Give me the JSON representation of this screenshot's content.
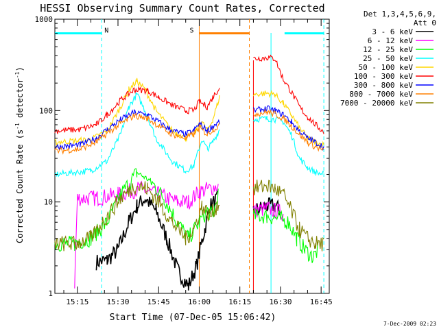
{
  "chart_data": {
    "type": "line",
    "title": "HESSI Observing Summary Count Rates, Corrected",
    "xlabel": "Start Time (07-Dec-05 15:06:42)",
    "ylabel": "Corrected Count Rate (s",
    "ylabel_sup1": "-1",
    "ylabel_mid": " detector",
    "ylabel_sup2": "-1",
    "ylabel_end": ")",
    "yscale": "log",
    "ylim": [
      1,
      1000
    ],
    "xlim": [
      "15:06:42",
      "16:48:00"
    ],
    "x_ticks": [
      "15:15",
      "15:30",
      "15:45",
      "16:00",
      "16:15",
      "16:30",
      "16:45"
    ],
    "y_ticks": [
      "1",
      "10",
      "100",
      "1000"
    ],
    "timestamp": "7-Dec-2009 02:23",
    "legend": {
      "header1": "Det 1,3,4,5,6,9,",
      "header2": "Att 0",
      "placement": "outside-right"
    },
    "flags": [
      {
        "label": "N",
        "color": "#00ffff",
        "segments": [
          [
            "15:06:42",
            "15:24:00"
          ],
          [
            "16:31:30",
            "16:46:00"
          ]
        ],
        "bounds": [
          "15:24:00",
          "16:46:00"
        ],
        "level": 700
      },
      {
        "label": "S",
        "color": "#ff8000",
        "segments": [
          [
            "16:00:00",
            "16:18:30"
          ]
        ],
        "bounds": [
          "16:00:00",
          "16:18:30"
        ],
        "level": 700
      }
    ],
    "gaps": [
      [
        "16:07:30",
        "16:20:00"
      ]
    ],
    "series": [
      {
        "name": "3 - 6 keV",
        "color": "#000000",
        "points": [
          [
            "15:06:42",
            null
          ],
          [
            "15:22:00",
            2.2
          ],
          [
            "15:26:00",
            2.3
          ],
          [
            "15:30:00",
            3
          ],
          [
            "15:34:00",
            6
          ],
          [
            "15:37:00",
            9
          ],
          [
            "15:40:00",
            11
          ],
          [
            "15:44:00",
            8
          ],
          [
            "15:48:00",
            4
          ],
          [
            "15:52:00",
            1.8
          ],
          [
            "15:56:00",
            1.2
          ],
          [
            "15:59:00",
            2
          ],
          [
            "16:02:00",
            5
          ],
          [
            "16:04:00",
            9
          ],
          [
            "16:07:00",
            11
          ],
          [
            "16:20:00",
            8
          ],
          [
            "16:25:00",
            9
          ],
          [
            "16:28:00",
            9
          ],
          [
            "16:30:00",
            8
          ]
        ]
      },
      {
        "name": "6 - 12 keV",
        "color": "#ff00ff",
        "points": [
          [
            "15:14:00",
            1.3
          ],
          [
            "15:15:00",
            11
          ],
          [
            "15:22:00",
            11
          ],
          [
            "15:30:00",
            12
          ],
          [
            "15:38:00",
            14
          ],
          [
            "15:45:00",
            12
          ],
          [
            "15:52:00",
            10
          ],
          [
            "15:56:00",
            10
          ],
          [
            "16:00:00",
            13
          ],
          [
            "16:04:00",
            14
          ],
          [
            "16:07:00",
            15
          ],
          [
            "16:20:00",
            8
          ],
          [
            "16:25:00",
            8.5
          ],
          [
            "16:28:00",
            8
          ],
          [
            "16:31:00",
            7.5
          ]
        ]
      },
      {
        "name": "12 - 25 keV",
        "color": "#00ff00",
        "points": [
          [
            "15:06:42",
            3.5
          ],
          [
            "15:14:00",
            3.5
          ],
          [
            "15:20:00",
            4
          ],
          [
            "15:26:00",
            6
          ],
          [
            "15:31:00",
            12
          ],
          [
            "15:37:00",
            21
          ],
          [
            "15:42:00",
            17
          ],
          [
            "15:47:00",
            11
          ],
          [
            "15:52:00",
            6
          ],
          [
            "15:56:00",
            4
          ],
          [
            "16:00:00",
            6
          ],
          [
            "16:03:00",
            8
          ],
          [
            "16:05:00",
            7
          ],
          [
            "16:07:00",
            12
          ],
          [
            "16:20:00",
            7
          ],
          [
            "16:25:00",
            7
          ],
          [
            "16:30:00",
            6.5
          ],
          [
            "16:33:00",
            6
          ],
          [
            "16:36:00",
            4
          ],
          [
            "16:39:00",
            3
          ],
          [
            "16:42:00",
            2.5
          ],
          [
            "16:44:00",
            3
          ]
        ]
      },
      {
        "name": "25 - 50 keV",
        "color": "#00ffff",
        "points": [
          [
            "15:06:42",
            20
          ],
          [
            "15:20:00",
            22
          ],
          [
            "15:26:00",
            28
          ],
          [
            "15:31:00",
            55
          ],
          [
            "15:34:00",
            110
          ],
          [
            "15:37:00",
            150
          ],
          [
            "15:40:00",
            100
          ],
          [
            "15:44:00",
            50
          ],
          [
            "15:50:00",
            28
          ],
          [
            "15:55:00",
            22
          ],
          [
            "15:58:00",
            25
          ],
          [
            "16:01:00",
            48
          ],
          [
            "16:03:00",
            38
          ],
          [
            "16:05:00",
            45
          ],
          [
            "16:07:30",
            62
          ],
          [
            "16:20:00",
            80
          ],
          [
            "16:25:00",
            82
          ],
          [
            "16:28:00",
            80
          ],
          [
            "16:31:00",
            75
          ],
          [
            "16:34:00",
            55
          ],
          [
            "16:37:00",
            30
          ],
          [
            "16:40:00",
            24
          ],
          [
            "16:43:00",
            21
          ],
          [
            "16:46:00",
            20
          ]
        ]
      },
      {
        "name": "50 - 100 keV",
        "color": "#ffd700",
        "points": [
          [
            "15:06:42",
            45
          ],
          [
            "15:20:00",
            48
          ],
          [
            "15:26:00",
            60
          ],
          [
            "15:31:00",
            110
          ],
          [
            "15:34:00",
            170
          ],
          [
            "15:37:00",
            210
          ],
          [
            "15:40:00",
            170
          ],
          [
            "15:44:00",
            100
          ],
          [
            "15:50:00",
            60
          ],
          [
            "15:55:00",
            50
          ],
          [
            "15:58:00",
            55
          ],
          [
            "16:01:00",
            75
          ],
          [
            "16:03:00",
            60
          ],
          [
            "16:05:00",
            80
          ],
          [
            "16:07:30",
            140
          ],
          [
            "16:20:00",
            150
          ],
          [
            "16:25:00",
            155
          ],
          [
            "16:28:00",
            150
          ],
          [
            "16:31:00",
            120
          ],
          [
            "16:34:00",
            90
          ],
          [
            "16:37:00",
            65
          ],
          [
            "16:40:00",
            50
          ],
          [
            "16:43:00",
            45
          ],
          [
            "16:46:00",
            42
          ]
        ]
      },
      {
        "name": "100 - 300 keV",
        "color": "#ff0000",
        "points": [
          [
            "15:06:42",
            60
          ],
          [
            "15:16:00",
            62
          ],
          [
            "15:22:00",
            70
          ],
          [
            "15:26:00",
            90
          ],
          [
            "15:31:00",
            130
          ],
          [
            "15:36:00",
            170
          ],
          [
            "15:41:00",
            165
          ],
          [
            "15:45:00",
            140
          ],
          [
            "15:50:00",
            115
          ],
          [
            "15:55:00",
            100
          ],
          [
            "15:58:00",
            100
          ],
          [
            "16:00:00",
            125
          ],
          [
            "16:03:00",
            110
          ],
          [
            "16:05:00",
            140
          ],
          [
            "16:07:30",
            180
          ],
          [
            "16:20:00",
            370
          ],
          [
            "16:25:00",
            380
          ],
          [
            "16:28:00",
            370
          ],
          [
            "16:31:00",
            220
          ],
          [
            "16:34:00",
            160
          ],
          [
            "16:37:00",
            110
          ],
          [
            "16:40:00",
            85
          ],
          [
            "16:43:00",
            70
          ],
          [
            "16:46:00",
            58
          ]
        ]
      },
      {
        "name": "300 - 800 keV",
        "color": "#0000ff",
        "points": [
          [
            "15:06:42",
            40
          ],
          [
            "15:16:00",
            42
          ],
          [
            "15:22:00",
            50
          ],
          [
            "15:26:00",
            62
          ],
          [
            "15:31:00",
            80
          ],
          [
            "15:36:00",
            95
          ],
          [
            "15:41:00",
            90
          ],
          [
            "15:45:00",
            75
          ],
          [
            "15:50:00",
            60
          ],
          [
            "15:55:00",
            55
          ],
          [
            "15:58:00",
            60
          ],
          [
            "16:00:00",
            72
          ],
          [
            "16:03:00",
            60
          ],
          [
            "16:05:00",
            68
          ],
          [
            "16:07:30",
            75
          ],
          [
            "16:20:00",
            100
          ],
          [
            "16:25:00",
            105
          ],
          [
            "16:28:00",
            100
          ],
          [
            "16:31:00",
            90
          ],
          [
            "16:34:00",
            75
          ],
          [
            "16:37:00",
            60
          ],
          [
            "16:40:00",
            50
          ],
          [
            "16:43:00",
            45
          ],
          [
            "16:46:00",
            40
          ]
        ]
      },
      {
        "name": "800 - 7000 keV",
        "color": "#ff8000",
        "points": [
          [
            "15:06:42",
            36
          ],
          [
            "15:16:00",
            38
          ],
          [
            "15:22:00",
            45
          ],
          [
            "15:26:00",
            56
          ],
          [
            "15:31:00",
            72
          ],
          [
            "15:36:00",
            88
          ],
          [
            "15:41:00",
            82
          ],
          [
            "15:45:00",
            68
          ],
          [
            "15:50:00",
            55
          ],
          [
            "15:55:00",
            50
          ],
          [
            "15:58:00",
            55
          ],
          [
            "16:00:00",
            65
          ],
          [
            "16:03:00",
            55
          ],
          [
            "16:05:00",
            62
          ],
          [
            "16:07:30",
            68
          ],
          [
            "16:20:00",
            92
          ],
          [
            "16:25:00",
            96
          ],
          [
            "16:28:00",
            92
          ],
          [
            "16:31:00",
            82
          ],
          [
            "16:34:00",
            68
          ],
          [
            "16:37:00",
            55
          ],
          [
            "16:40:00",
            45
          ],
          [
            "16:43:00",
            40
          ],
          [
            "16:46:00",
            36
          ]
        ]
      },
      {
        "name": "7000 - 20000 keV",
        "color": "#808000",
        "points": [
          [
            "15:06:42",
            3.5
          ],
          [
            "15:14:00",
            3.5
          ],
          [
            "15:20:00",
            4
          ],
          [
            "15:26:00",
            7
          ],
          [
            "15:31:00",
            11
          ],
          [
            "15:36:00",
            15
          ],
          [
            "15:41:00",
            14
          ],
          [
            "15:45:00",
            10
          ],
          [
            "15:50:00",
            6
          ],
          [
            "15:55:00",
            4
          ],
          [
            "15:58:00",
            5
          ],
          [
            "16:01:00",
            9
          ],
          [
            "16:04:00",
            7
          ],
          [
            "16:07:30",
            10
          ],
          [
            "16:20:00",
            14
          ],
          [
            "16:25:00",
            15
          ],
          [
            "16:28:00",
            14
          ],
          [
            "16:31:00",
            12
          ],
          [
            "16:34:00",
            8
          ],
          [
            "16:37:00",
            5
          ],
          [
            "16:40:00",
            4
          ],
          [
            "16:43:00",
            3.5
          ],
          [
            "16:46:00",
            3.5
          ]
        ]
      }
    ]
  }
}
